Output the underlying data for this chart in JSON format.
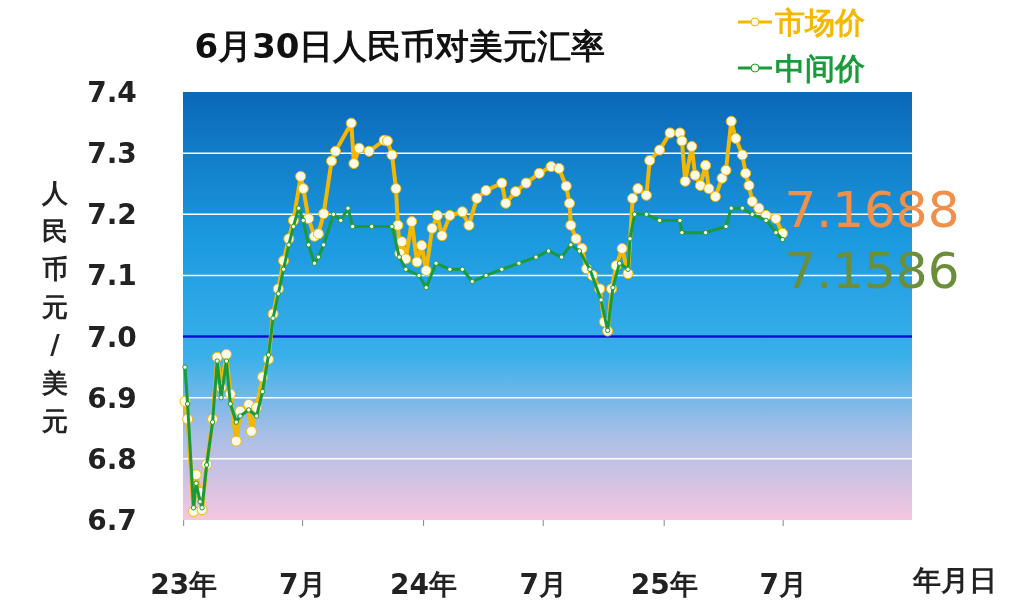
{
  "chart_data": {
    "type": "line",
    "title": "6月30日人民币对美元汇率",
    "xlabel": "年月日",
    "ylabel": "人民币元/美元",
    "xlim": [
      "2022-12-31",
      "2026-01-13"
    ],
    "xticks": [
      {
        "value": "2023-01-01",
        "label": "23年"
      },
      {
        "value": "2023-07-01",
        "label": "7月"
      },
      {
        "value": "2024-01-01",
        "label": "24年"
      },
      {
        "value": "2024-07-01",
        "label": "7月"
      },
      {
        "value": "2025-01-01",
        "label": "25年"
      },
      {
        "value": "2025-07-01",
        "label": "7月"
      }
    ],
    "ylim": [
      6.7,
      7.4
    ],
    "yticks": [
      {
        "value": 6.7,
        "label": "6.7"
      },
      {
        "value": 6.8,
        "label": "6.8"
      },
      {
        "value": 6.9,
        "label": "6.9"
      },
      {
        "value": 7.0,
        "label": "7.0"
      },
      {
        "value": 7.1,
        "label": "7.1"
      },
      {
        "value": 7.2,
        "label": "7.2"
      },
      {
        "value": 7.3,
        "label": "7.3"
      },
      {
        "value": 7.4,
        "label": "7.4"
      }
    ],
    "grid": "y",
    "legend": "top right",
    "marker": "circle",
    "line_style": "solid",
    "ref_lines": [
      {
        "axis": "y",
        "value": 7.0,
        "color": "#0010d0"
      }
    ],
    "series": [
      {
        "name": "市场价",
        "color": "#f5b800",
        "x": [
          "2023-01-03",
          "2023-01-07",
          "2023-01-16",
          "2023-01-20",
          "2023-01-26",
          "2023-01-29",
          "2023-02-05",
          "2023-02-14",
          "2023-02-21",
          "2023-02-27",
          "2023-03-07",
          "2023-03-13",
          "2023-03-22",
          "2023-03-28",
          "2023-04-10",
          "2023-04-14",
          "2023-04-22",
          "2023-05-01",
          "2023-05-10",
          "2023-05-17",
          "2023-05-25",
          "2023-06-02",
          "2023-06-10",
          "2023-06-17",
          "2023-06-28",
          "2023-07-02",
          "2023-07-10",
          "2023-07-19",
          "2023-07-25",
          "2023-08-02",
          "2023-08-14",
          "2023-08-20",
          "2023-09-13",
          "2023-09-17",
          "2023-09-25",
          "2023-10-10",
          "2023-11-02",
          "2023-11-07",
          "2023-11-14",
          "2023-11-20",
          "2023-11-23",
          "2023-11-26",
          "2023-11-29",
          "2023-12-05",
          "2023-12-14",
          "2023-12-22",
          "2023-12-29",
          "2024-01-05",
          "2024-01-14",
          "2024-01-22",
          "2024-01-29",
          "2024-02-10",
          "2024-02-29",
          "2024-03-10",
          "2024-03-22",
          "2024-04-05",
          "2024-04-29",
          "2024-05-05",
          "2024-05-20",
          "2024-06-05",
          "2024-06-25",
          "2024-07-13",
          "2024-07-25",
          "2024-08-05",
          "2024-08-10",
          "2024-08-12",
          "2024-08-20",
          "2024-08-29",
          "2024-09-05",
          "2024-09-14",
          "2024-09-25",
          "2024-10-02",
          "2024-10-07",
          "2024-10-13",
          "2024-10-20",
          "2024-10-29",
          "2024-11-07",
          "2024-11-14",
          "2024-11-22",
          "2024-12-05",
          "2024-12-10",
          "2024-12-25",
          "2025-01-10",
          "2025-01-25",
          "2025-01-28",
          "2025-02-02",
          "2025-02-12",
          "2025-02-17",
          "2025-02-25",
          "2025-03-05",
          "2025-03-10",
          "2025-03-20",
          "2025-03-30",
          "2025-04-05",
          "2025-04-13",
          "2025-04-20",
          "2025-04-30",
          "2025-05-05",
          "2025-05-10",
          "2025-05-15",
          "2025-05-25",
          "2025-06-05",
          "2025-06-20",
          "2025-06-30"
        ],
        "values": [
          6.894,
          6.865,
          6.714,
          6.774,
          6.745,
          6.717,
          6.791,
          6.865,
          6.966,
          6.917,
          6.971,
          6.906,
          6.829,
          6.878,
          6.889,
          6.845,
          6.884,
          6.934,
          6.963,
          7.037,
          7.078,
          7.124,
          7.16,
          7.19,
          7.262,
          7.242,
          7.193,
          7.164,
          7.168,
          7.201,
          7.287,
          7.303,
          7.349,
          7.283,
          7.308,
          7.303,
          7.321,
          7.32,
          7.297,
          7.242,
          7.182,
          7.136,
          7.155,
          7.127,
          7.188,
          7.122,
          7.149,
          7.108,
          7.177,
          7.198,
          7.165,
          7.198,
          7.204,
          7.182,
          7.226,
          7.239,
          7.251,
          7.218,
          7.237,
          7.251,
          7.267,
          7.278,
          7.275,
          7.246,
          7.218,
          7.182,
          7.16,
          7.144,
          7.111,
          7.1,
          7.078,
          7.024,
          7.009,
          7.078,
          7.116,
          7.144,
          7.103,
          7.226,
          7.242,
          7.231,
          7.288,
          7.305,
          7.333,
          7.333,
          7.32,
          7.254,
          7.311,
          7.264,
          7.247,
          7.28,
          7.242,
          7.229,
          7.259,
          7.272,
          7.352,
          7.324,
          7.297,
          7.267,
          7.247,
          7.221,
          7.21,
          7.198,
          7.193,
          7.1688
        ]
      },
      {
        "name": "中间价",
        "color": "#1a9a3a",
        "x": [
          "2023-01-03",
          "2023-01-07",
          "2023-01-16",
          "2023-01-20",
          "2023-01-26",
          "2023-01-29",
          "2023-02-05",
          "2023-02-14",
          "2023-02-21",
          "2023-02-27",
          "2023-03-07",
          "2023-03-13",
          "2023-03-22",
          "2023-03-28",
          "2023-04-10",
          "2023-04-22",
          "2023-05-01",
          "2023-05-10",
          "2023-05-17",
          "2023-05-25",
          "2023-06-02",
          "2023-06-10",
          "2023-06-17",
          "2023-06-25",
          "2023-07-02",
          "2023-07-10",
          "2023-07-19",
          "2023-07-25",
          "2023-08-02",
          "2023-08-17",
          "2023-08-28",
          "2023-09-08",
          "2023-09-15",
          "2023-10-14",
          "2023-11-14",
          "2023-11-25",
          "2023-12-05",
          "2023-12-25",
          "2024-01-05",
          "2024-01-20",
          "2024-02-10",
          "2024-02-29",
          "2024-03-15",
          "2024-04-05",
          "2024-04-29",
          "2024-05-25",
          "2024-06-20",
          "2024-07-09",
          "2024-07-29",
          "2024-08-12",
          "2024-08-25",
          "2024-09-10",
          "2024-09-27",
          "2024-10-07",
          "2024-10-15",
          "2024-10-25",
          "2024-11-07",
          "2024-11-10",
          "2024-11-17",
          "2024-12-05",
          "2024-12-25",
          "2025-01-25",
          "2025-01-28",
          "2025-03-05",
          "2025-04-05",
          "2025-04-13",
          "2025-04-30",
          "2025-05-15",
          "2025-06-05",
          "2025-06-20",
          "2025-06-30"
        ],
        "values": [
          6.95,
          6.89,
          6.72,
          6.76,
          6.73,
          6.72,
          6.79,
          6.86,
          6.96,
          6.9,
          6.96,
          6.89,
          6.86,
          6.87,
          6.88,
          6.87,
          6.91,
          6.97,
          7.03,
          7.07,
          7.11,
          7.15,
          7.18,
          7.21,
          7.19,
          7.15,
          7.12,
          7.13,
          7.15,
          7.2,
          7.19,
          7.21,
          7.18,
          7.18,
          7.18,
          7.13,
          7.11,
          7.1,
          7.08,
          7.12,
          7.11,
          7.11,
          7.09,
          7.1,
          7.11,
          7.12,
          7.13,
          7.14,
          7.13,
          7.15,
          7.14,
          7.11,
          7.06,
          7.01,
          7.08,
          7.12,
          7.11,
          7.16,
          7.2,
          7.2,
          7.19,
          7.19,
          7.17,
          7.17,
          7.18,
          7.21,
          7.21,
          7.2,
          7.19,
          7.17,
          7.1586
        ]
      }
    ],
    "annotations": [
      {
        "text": "7.1688",
        "x": "2025-06-30",
        "y": 7.1688
      },
      {
        "text": "7.1586",
        "x": "2025-06-30",
        "y": 7.1586
      }
    ]
  }
}
